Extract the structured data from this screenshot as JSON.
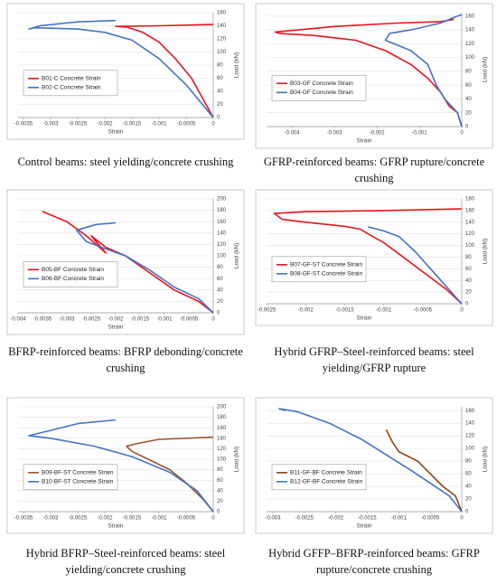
{
  "chart_data": [
    {
      "type": "line",
      "caption": "Control beams: steel yielding/concrete crushing",
      "xlabel": "Strain",
      "ylabel": "Load (kN)",
      "xlim": [
        -0.0036,
        0
      ],
      "xticks": [
        -0.0035,
        -0.003,
        -0.0025,
        -0.002,
        -0.0015,
        -0.001,
        -0.0005,
        0
      ],
      "ylim": [
        0,
        160
      ],
      "yticks": [
        0,
        20,
        40,
        60,
        80,
        100,
        120,
        140,
        160
      ],
      "grid": true,
      "legend": "left",
      "series": [
        {
          "name": "B01-C Concrete Strain",
          "color": "#e8141c",
          "x": [
            0,
            -0.0002,
            -0.0004,
            -0.0007,
            -0.001,
            -0.0013,
            -0.0016,
            -0.0018,
            -0.001,
            -0.0005,
            0
          ],
          "values": [
            0,
            30,
            60,
            90,
            115,
            130,
            138,
            139,
            140,
            141,
            142
          ]
        },
        {
          "name": "B02-C Concrete Strain",
          "color": "#4472c4",
          "x": [
            0,
            -0.0005,
            -0.001,
            -0.0015,
            -0.002,
            -0.0025,
            -0.0033,
            -0.0034,
            -0.0032,
            -0.0025,
            -0.0018
          ],
          "values": [
            0,
            50,
            90,
            118,
            130,
            135,
            137,
            135,
            140,
            146,
            148
          ]
        }
      ]
    },
    {
      "type": "line",
      "caption": "GFRP-reinforced beams: GFRP rupture/concrete crushing",
      "xlabel": "Strain",
      "ylabel": "Load (kN)",
      "xlim": [
        -0.0046,
        0
      ],
      "xticks": [
        -0.004,
        -0.003,
        -0.002,
        -0.001,
        0
      ],
      "ylim": [
        0,
        165
      ],
      "yticks": [
        0,
        20,
        40,
        60,
        80,
        100,
        120,
        140,
        160
      ],
      "grid": true,
      "legend": "left",
      "series": [
        {
          "name": "B03-GF Concrete Strain",
          "color": "#e8141c",
          "x": [
            0,
            -0.0001,
            -0.0003,
            -0.0005,
            -0.0008,
            -0.0012,
            -0.0018,
            -0.0025,
            -0.0035,
            -0.0043,
            -0.0044,
            -0.003,
            -0.0015,
            -0.0005,
            -0.0002,
            -0.0004
          ],
          "values": [
            0,
            20,
            30,
            50,
            70,
            90,
            110,
            125,
            132,
            135,
            137,
            145,
            150,
            152,
            155,
            153
          ]
        },
        {
          "name": "B04-GF Concrete Strain",
          "color": "#4472c4",
          "x": [
            0,
            -0.0001,
            -0.0004,
            -0.0006,
            -0.0008,
            -0.0012,
            -0.0018,
            -0.0017,
            -0.0012,
            -0.0005,
            -0.0001,
            0
          ],
          "values": [
            0,
            20,
            40,
            60,
            90,
            110,
            125,
            135,
            140,
            150,
            160,
            162
          ]
        }
      ]
    },
    {
      "type": "line",
      "caption": "BFRP-reinforced beams: BFRP debonding/concrete crushing",
      "xlabel": "Strain",
      "ylabel": "Load (kN)",
      "xlim": [
        -0.004,
        0
      ],
      "xticks": [
        -0.004,
        -0.0035,
        -0.003,
        -0.0025,
        -0.002,
        -0.0015,
        -0.001,
        -0.0005,
        0
      ],
      "ylim": [
        0,
        200
      ],
      "yticks": [
        0,
        20,
        40,
        60,
        80,
        100,
        120,
        140,
        160,
        180,
        200
      ],
      "grid": true,
      "legend": "left",
      "series": [
        {
          "name": "B05-BF Concrete Strain",
          "color": "#e8141c",
          "x": [
            0,
            -0.0003,
            -0.0008,
            -0.0013,
            -0.0018,
            -0.0022,
            -0.0025,
            -0.0024,
            -0.0022,
            -0.0026,
            -0.003,
            -0.0035
          ],
          "values": [
            0,
            20,
            40,
            70,
            100,
            115,
            135,
            125,
            105,
            135,
            160,
            178
          ]
        },
        {
          "name": "B06-BF Concrete Strain",
          "color": "#4472c4",
          "x": [
            0,
            -0.0003,
            -0.0008,
            -0.0013,
            -0.0018,
            -0.0022,
            -0.0026,
            -0.0028,
            -0.0024,
            -0.002
          ],
          "values": [
            0,
            25,
            45,
            75,
            100,
            112,
            125,
            145,
            155,
            158
          ]
        }
      ]
    },
    {
      "type": "line",
      "caption": "Hybrid GFRP–Steel-reinforced beams: steel yielding/GFRP rupture",
      "xlabel": "Strain",
      "ylabel": "Load (kN)",
      "xlim": [
        -0.0025,
        0
      ],
      "xticks": [
        -0.0025,
        -0.002,
        -0.0015,
        -0.001,
        -0.0005,
        0
      ],
      "ylim": [
        0,
        180
      ],
      "yticks": [
        0,
        20,
        40,
        60,
        80,
        100,
        120,
        140,
        160,
        180
      ],
      "grid": true,
      "legend": "left",
      "series": [
        {
          "name": "B07-GF-ST Concrete Strain",
          "color": "#e8141c",
          "x": [
            0,
            -0.0002,
            -0.0005,
            -0.0008,
            -0.001,
            -0.0012,
            -0.0013,
            -0.0015,
            -0.002,
            -0.0023,
            -0.0024,
            -0.002,
            -0.001,
            0
          ],
          "values": [
            0,
            25,
            55,
            85,
            105,
            120,
            128,
            133,
            140,
            145,
            155,
            158,
            160,
            163
          ]
        },
        {
          "name": "B08-GF-ST Concrete Strain",
          "color": "#4472c4",
          "x": [
            0,
            -0.0002,
            -0.0004,
            -0.0006,
            -0.0008,
            -0.001,
            -0.0012
          ],
          "values": [
            0,
            30,
            60,
            90,
            115,
            125,
            132
          ]
        }
      ]
    },
    {
      "type": "line",
      "caption": "Hybrid BFRP–Steel-reinforced beams: steel yielding/concrete crushing",
      "xlabel": "Strain",
      "ylabel": "Load (kN)",
      "xlim": [
        -0.0036,
        0
      ],
      "xticks": [
        -0.0035,
        -0.003,
        -0.0025,
        -0.002,
        -0.0015,
        -0.001,
        -0.0005,
        0
      ],
      "ylim": [
        0,
        200
      ],
      "yticks": [
        0,
        20,
        40,
        60,
        80,
        100,
        120,
        140,
        160,
        180,
        200
      ],
      "grid": true,
      "legend": "left",
      "series": [
        {
          "name": "B09-BF-ST Concrete Strain",
          "color": "#a0522d",
          "x": [
            0,
            -0.0002,
            -0.0005,
            -0.0008,
            -0.0012,
            -0.0015,
            -0.0016,
            -0.0014,
            -0.001,
            0
          ],
          "values": [
            0,
            25,
            55,
            80,
            100,
            115,
            125,
            130,
            138,
            142
          ]
        },
        {
          "name": "B10-BF-ST Concrete Strain",
          "color": "#4472c4",
          "x": [
            0,
            -0.0003,
            -0.0008,
            -0.0015,
            -0.0022,
            -0.003,
            -0.0034,
            -0.003,
            -0.0025,
            -0.0018
          ],
          "values": [
            0,
            40,
            75,
            105,
            125,
            140,
            145,
            155,
            168,
            175
          ]
        }
      ]
    },
    {
      "type": "line",
      "caption": "Hybrid GFFP–BFRP-reinforced beams: GFRP rupture/concrete crushing",
      "xlabel": "Strain",
      "ylabel": "Load (kN)",
      "xlim": [
        -0.0031,
        0
      ],
      "xticks": [
        -0.003,
        -0.0025,
        -0.002,
        -0.0015,
        -0.001,
        -0.0005,
        0
      ],
      "ylim": [
        0,
        166
      ],
      "yticks": [
        0,
        20,
        40,
        60,
        80,
        100,
        120,
        140,
        160
      ],
      "grid": true,
      "legend": "left",
      "series": [
        {
          "name": "B11-GF-BF Concrete Strain",
          "color": "#8b4513",
          "x": [
            0,
            -0.0001,
            -0.0003,
            -0.0005,
            -0.0007,
            -0.001,
            -0.0011,
            -0.0012
          ],
          "values": [
            0,
            25,
            40,
            60,
            80,
            95,
            110,
            130
          ]
        },
        {
          "name": "B12-GF-BF Concrete Strain",
          "color": "#4472c4",
          "x": [
            0,
            -0.0002,
            -0.0005,
            -0.0008,
            -0.0012,
            -0.0016,
            -0.0021,
            -0.0026,
            -0.0029,
            -0.0028
          ],
          "values": [
            0,
            25,
            45,
            65,
            90,
            115,
            140,
            158,
            163,
            160
          ]
        }
      ]
    }
  ]
}
